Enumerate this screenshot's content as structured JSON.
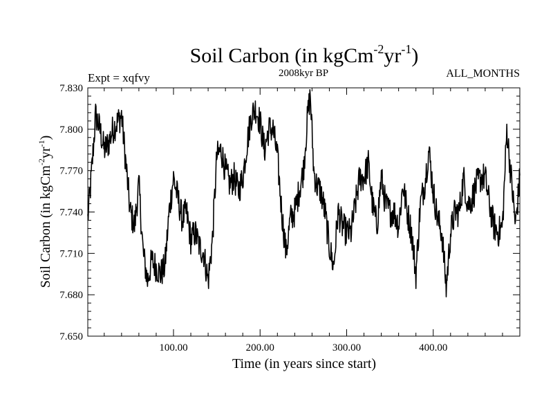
{
  "chart_data": {
    "type": "line",
    "title": "Soil Carbon (in kgCm",
    "title_sup1": "-2",
    "title_mid": "yr",
    "title_sup2": "-1",
    "title_end": ")",
    "subtitle_left": "Expt = xqfvy",
    "subtitle_center": "2008kyr BP",
    "subtitle_right": "ALL_MONTHS",
    "xlabel": "Time (in years since start)",
    "ylabel": "Soil Carbon (in kgCm",
    "ylabel_sup1": "-2",
    "ylabel_mid": "yr",
    "ylabel_sup2": "-1",
    "ylabel_end": ")",
    "xlim": [
      1,
      500
    ],
    "ylim": [
      7.65,
      7.83
    ],
    "xticks": [
      100,
      200,
      300,
      400
    ],
    "xtick_labels": [
      "100.00",
      "200.00",
      "300.00",
      "400.00"
    ],
    "yticks": [
      7.65,
      7.68,
      7.71,
      7.74,
      7.77,
      7.8,
      7.83
    ],
    "ytick_labels": [
      "7.650",
      "7.680",
      "7.710",
      "7.740",
      "7.770",
      "7.800",
      "7.830"
    ],
    "series": [
      {
        "name": "Soil Carbon",
        "color": "#000000",
        "x": [
          1,
          5,
          10,
          15,
          20,
          25,
          30,
          35,
          40,
          45,
          50,
          55,
          60,
          65,
          70,
          75,
          80,
          85,
          90,
          95,
          100,
          105,
          110,
          115,
          120,
          125,
          130,
          135,
          140,
          145,
          150,
          155,
          160,
          165,
          170,
          175,
          180,
          185,
          190,
          195,
          200,
          205,
          210,
          215,
          220,
          225,
          230,
          235,
          240,
          245,
          250,
          255,
          258,
          262,
          265,
          270,
          275,
          280,
          285,
          290,
          295,
          300,
          305,
          310,
          315,
          320,
          325,
          330,
          335,
          340,
          345,
          350,
          355,
          360,
          365,
          370,
          375,
          380,
          385,
          390,
          395,
          400,
          405,
          410,
          415,
          420,
          425,
          430,
          435,
          440,
          445,
          450,
          455,
          460,
          465,
          470,
          475,
          480,
          485,
          490,
          495,
          500
        ],
        "values": [
          7.735,
          7.765,
          7.81,
          7.8,
          7.785,
          7.79,
          7.8,
          7.805,
          7.81,
          7.775,
          7.74,
          7.73,
          7.76,
          7.71,
          7.69,
          7.705,
          7.7,
          7.695,
          7.7,
          7.74,
          7.765,
          7.75,
          7.735,
          7.74,
          7.72,
          7.725,
          7.715,
          7.71,
          7.69,
          7.72,
          7.78,
          7.785,
          7.77,
          7.76,
          7.765,
          7.755,
          7.765,
          7.79,
          7.81,
          7.815,
          7.805,
          7.785,
          7.8,
          7.8,
          7.78,
          7.74,
          7.71,
          7.735,
          7.74,
          7.755,
          7.77,
          7.81,
          7.825,
          7.77,
          7.76,
          7.755,
          7.74,
          7.715,
          7.7,
          7.74,
          7.73,
          7.725,
          7.725,
          7.745,
          7.765,
          7.765,
          7.775,
          7.745,
          7.73,
          7.765,
          7.745,
          7.74,
          7.74,
          7.73,
          7.76,
          7.74,
          7.725,
          7.695,
          7.745,
          7.76,
          7.785,
          7.755,
          7.735,
          7.725,
          7.685,
          7.725,
          7.74,
          7.74,
          7.765,
          7.745,
          7.75,
          7.76,
          7.765,
          7.765,
          7.745,
          7.73,
          7.725,
          7.73,
          7.8,
          7.765,
          7.73,
          7.765
        ]
      }
    ]
  }
}
